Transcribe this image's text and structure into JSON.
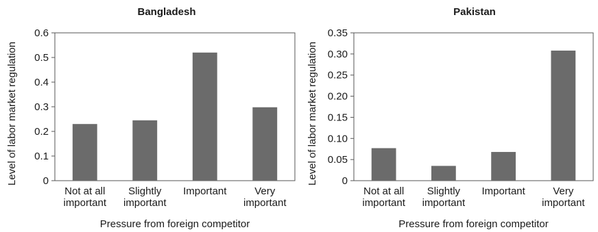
{
  "chart_data": [
    {
      "type": "bar",
      "title": "Bangladesh",
      "xlabel": "Pressure from foreign competitor",
      "ylabel": "Level of labor market regulation",
      "categories": [
        [
          "Not at all",
          "important"
        ],
        [
          "Slightly",
          "important"
        ],
        [
          "Important"
        ],
        [
          "Very",
          "important"
        ]
      ],
      "values": [
        0.23,
        0.245,
        0.52,
        0.298
      ],
      "ylim": [
        0,
        0.6
      ],
      "yticks": [
        "0",
        "0.1",
        "0.2",
        "0.3",
        "0.4",
        "0.5",
        "0.6"
      ],
      "grid": false,
      "bar_color": "#6b6b6b"
    },
    {
      "type": "bar",
      "title": "Pakistan",
      "xlabel": "Pressure from foreign competitor",
      "ylabel": "Level of labor market regulation",
      "categories": [
        [
          "Not at all",
          "important"
        ],
        [
          "Slightly",
          "important"
        ],
        [
          "Important"
        ],
        [
          "Very",
          "important"
        ]
      ],
      "values": [
        0.077,
        0.035,
        0.068,
        0.308
      ],
      "ylim": [
        0,
        0.35
      ],
      "yticks": [
        "0",
        "0.05",
        "0.10",
        "0.15",
        "0.20",
        "0.25",
        "0.30",
        "0.35"
      ],
      "grid": false,
      "bar_color": "#6b6b6b"
    }
  ]
}
